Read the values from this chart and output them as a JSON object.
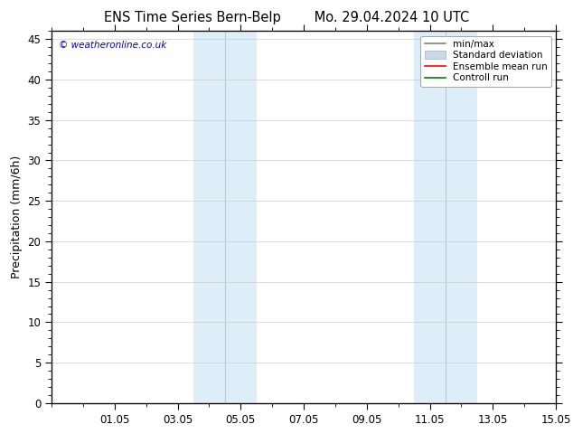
{
  "title": "ENS Time Series Bern-Belp        Mo. 29.04.2024 10 UTC",
  "ylabel": "Precipitation (mm/6h)",
  "ylim": [
    0,
    46
  ],
  "yticks": [
    0,
    5,
    10,
    15,
    20,
    25,
    30,
    35,
    40,
    45
  ],
  "xtick_positions": [
    2,
    4,
    6,
    8,
    10,
    12,
    14,
    16
  ],
  "xtick_labels": [
    "01.05",
    "03.05",
    "05.05",
    "07.05",
    "09.05",
    "11.05",
    "13.05",
    "15.05"
  ],
  "x_min": 0.0,
  "x_max": 16.0,
  "background_color": "#ffffff",
  "plot_bg_color": "#ffffff",
  "shade_color": "#deeef8",
  "shade_regions": [
    [
      4.0,
      5.0
    ],
    [
      5.0,
      6.5
    ],
    [
      11.5,
      12.5
    ],
    [
      12.5,
      14.0
    ]
  ],
  "watermark": "© weatheronline.co.uk",
  "watermark_color": "#0000cc",
  "legend_items": [
    {
      "label": "min/max",
      "color": "#808080",
      "lw": 1.2
    },
    {
      "label": "Standard deviation",
      "color": "#c8d8e8",
      "lw": 8
    },
    {
      "label": "Ensemble mean run",
      "color": "#ff0000",
      "lw": 1.2
    },
    {
      "label": "Controll run",
      "color": "#008000",
      "lw": 1.2
    }
  ],
  "grid_color": "#cccccc",
  "spine_color": "#000000",
  "minor_tick_interval": 1,
  "figsize": [
    6.34,
    4.9
  ],
  "dpi": 100
}
